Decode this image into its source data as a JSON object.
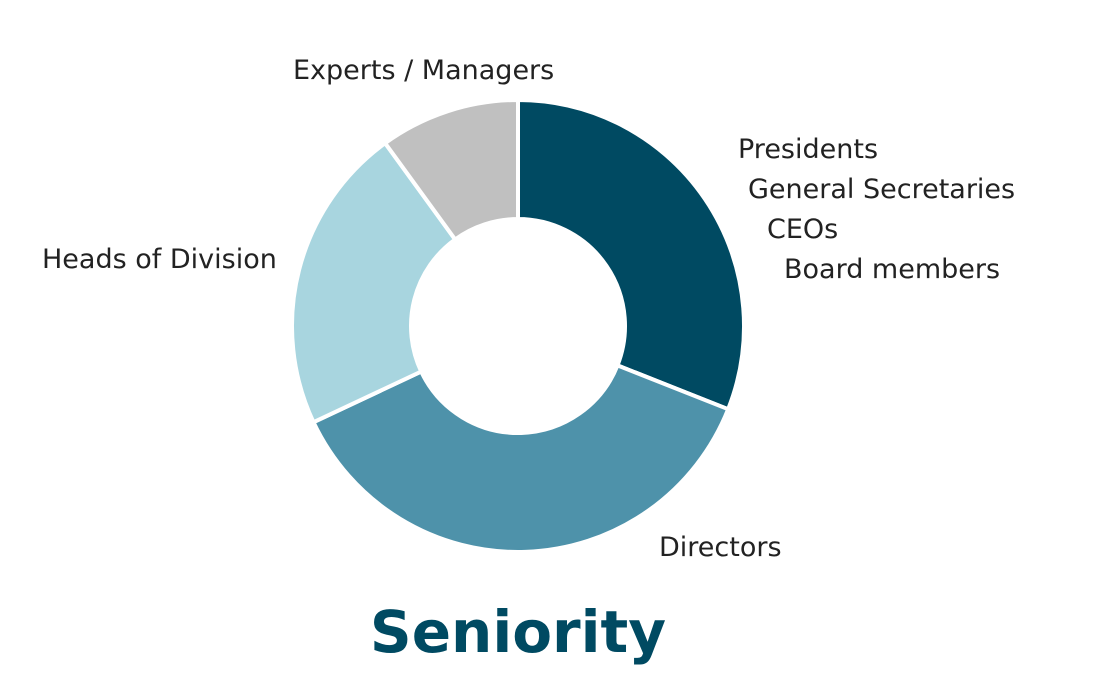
{
  "chart_data": {
    "type": "pie",
    "style": "donut",
    "title": "Seniority",
    "slices": [
      {
        "label": [
          "Presidents",
          "General Secretaries",
          "CEOs",
          "Board members"
        ],
        "value": 31,
        "color": "#004a62"
      },
      {
        "label": [
          "Directors"
        ],
        "value": 37,
        "color": "#4e92aa"
      },
      {
        "label": [
          "Heads of Division"
        ],
        "value": 22,
        "color": "#a8d5df"
      },
      {
        "label": [
          "Experts / Managers"
        ],
        "value": 10,
        "color": "#c0c0c0"
      }
    ],
    "legend": "none",
    "grid": false,
    "title_color": "#004a62"
  }
}
